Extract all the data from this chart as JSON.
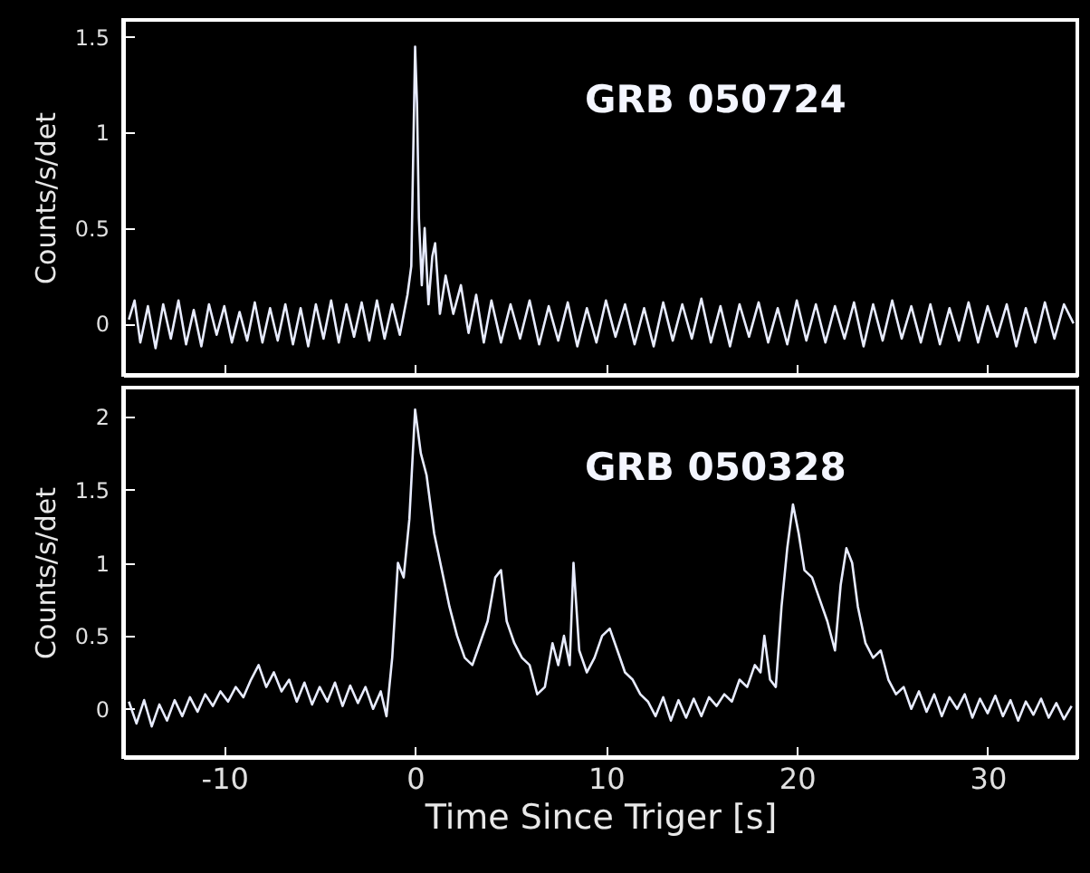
{
  "chart_data": [
    {
      "type": "line",
      "ylabel": "Counts/s/det",
      "annotations": [
        "GRB 050724"
      ],
      "xlim": [
        -15.3,
        34.7
      ],
      "xticks": [
        -10,
        0,
        10,
        20,
        30
      ],
      "ylim": [
        -0.27,
        1.59
      ],
      "yticks": [
        0,
        0.5,
        1,
        1.5
      ],
      "tick_labels": "y",
      "series": [
        {
          "color": "#e8ecff",
          "x": [
            -15,
            -14.7,
            -14.4,
            -14,
            -13.6,
            -13.2,
            -12.8,
            -12.4,
            -12,
            -11.6,
            -11.2,
            -10.8,
            -10.4,
            -10,
            -9.6,
            -9.2,
            -8.8,
            -8.4,
            -8,
            -7.6,
            -7.2,
            -6.8,
            -6.4,
            -6,
            -5.6,
            -5.2,
            -4.8,
            -4.4,
            -4,
            -3.6,
            -3.2,
            -2.8,
            -2.4,
            -2,
            -1.6,
            -1.2,
            -0.8,
            -0.4,
            -0.2,
            0,
            0.1,
            0.2,
            0.35,
            0.5,
            0.7,
            0.9,
            1.05,
            1.3,
            1.6,
            2,
            2.4,
            2.8,
            3.2,
            3.6,
            4,
            4.5,
            5,
            5.5,
            6,
            6.5,
            7,
            7.5,
            8,
            8.5,
            9,
            9.5,
            10,
            10.5,
            11,
            11.5,
            12,
            12.5,
            13,
            13.5,
            14,
            14.5,
            15,
            15.5,
            16,
            16.5,
            17,
            17.5,
            18,
            18.5,
            19,
            19.5,
            20,
            20.5,
            21,
            21.5,
            22,
            22.5,
            23,
            23.5,
            24,
            24.5,
            25,
            25.5,
            26,
            26.5,
            27,
            27.5,
            28,
            28.5,
            29,
            29.5,
            30,
            30.5,
            31,
            31.5,
            32,
            32.5,
            33,
            33.5,
            34,
            34.5
          ],
          "values": [
            0.02,
            0.12,
            -0.1,
            0.09,
            -0.13,
            0.1,
            -0.08,
            0.12,
            -0.11,
            0.07,
            -0.12,
            0.1,
            -0.06,
            0.09,
            -0.1,
            0.06,
            -0.09,
            0.11,
            -0.1,
            0.08,
            -0.09,
            0.1,
            -0.11,
            0.08,
            -0.12,
            0.1,
            -0.08,
            0.12,
            -0.1,
            0.1,
            -0.07,
            0.11,
            -0.09,
            0.12,
            -0.08,
            0.1,
            -0.06,
            0.15,
            0.3,
            1.45,
            1.15,
            0.55,
            0.2,
            0.5,
            0.1,
            0.35,
            0.42,
            0.05,
            0.25,
            0.05,
            0.2,
            -0.05,
            0.15,
            -0.1,
            0.12,
            -0.1,
            0.1,
            -0.08,
            0.12,
            -0.11,
            0.09,
            -0.09,
            0.11,
            -0.12,
            0.08,
            -0.1,
            0.12,
            -0.07,
            0.1,
            -0.11,
            0.08,
            -0.12,
            0.11,
            -0.09,
            0.1,
            -0.08,
            0.13,
            -0.1,
            0.09,
            -0.12,
            0.1,
            -0.07,
            0.11,
            -0.1,
            0.08,
            -0.11,
            0.12,
            -0.09,
            0.1,
            -0.1,
            0.09,
            -0.08,
            0.11,
            -0.12,
            0.1,
            -0.09,
            0.12,
            -0.08,
            0.09,
            -0.1,
            0.1,
            -0.11,
            0.08,
            -0.09,
            0.11,
            -0.1,
            0.09,
            -0.07,
            0.1,
            -0.12,
            0.08,
            -0.1,
            0.11,
            -0.08,
            0.1,
            0.0
          ]
        }
      ]
    },
    {
      "type": "line",
      "xlabel": "Time Since Triger [s]",
      "ylabel": "Counts/s/det",
      "annotations": [
        "GRB 050328"
      ],
      "xlim": [
        -15.3,
        34.7
      ],
      "xticks": [
        -10,
        0,
        10,
        20,
        30
      ],
      "ylim": [
        -0.33,
        2.2
      ],
      "yticks": [
        0,
        0.5,
        1,
        1.5,
        2
      ],
      "series": [
        {
          "color": "#e8ecff",
          "x": [
            -15,
            -14.6,
            -14.2,
            -13.8,
            -13.4,
            -13,
            -12.6,
            -12.2,
            -11.8,
            -11.4,
            -11,
            -10.6,
            -10.2,
            -9.8,
            -9.4,
            -9,
            -8.6,
            -8.2,
            -7.8,
            -7.4,
            -7,
            -6.6,
            -6.2,
            -5.8,
            -5.4,
            -5,
            -4.6,
            -4.2,
            -3.8,
            -3.4,
            -3,
            -2.6,
            -2.2,
            -1.8,
            -1.5,
            -1.2,
            -0.9,
            -0.6,
            -0.3,
            0,
            0.3,
            0.6,
            1,
            1.4,
            1.8,
            2.2,
            2.6,
            3,
            3.4,
            3.8,
            4.2,
            4.5,
            4.8,
            5.2,
            5.6,
            6,
            6.4,
            6.8,
            7.2,
            7.5,
            7.8,
            8.1,
            8.3,
            8.6,
            9,
            9.4,
            9.8,
            10.2,
            10.6,
            11,
            11.4,
            11.8,
            12.2,
            12.6,
            13,
            13.4,
            13.8,
            14.2,
            14.6,
            15,
            15.4,
            15.8,
            16.2,
            16.6,
            17,
            17.4,
            17.8,
            18.1,
            18.3,
            18.6,
            18.9,
            19.2,
            19.5,
            19.8,
            20.1,
            20.4,
            20.8,
            21.2,
            21.6,
            22,
            22.3,
            22.6,
            22.9,
            23.2,
            23.6,
            24,
            24.4,
            24.8,
            25.2,
            25.6,
            26,
            26.4,
            26.8,
            27.2,
            27.6,
            28,
            28.4,
            28.8,
            29.2,
            29.6,
            30,
            30.4,
            30.8,
            31.2,
            31.6,
            32,
            32.4,
            32.8,
            33.2,
            33.6,
            34,
            34.4
          ],
          "values": [
            0.05,
            -0.1,
            0.06,
            -0.12,
            0.03,
            -0.08,
            0.06,
            -0.05,
            0.08,
            -0.02,
            0.1,
            0.02,
            0.12,
            0.05,
            0.15,
            0.08,
            0.2,
            0.3,
            0.15,
            0.25,
            0.12,
            0.2,
            0.05,
            0.18,
            0.03,
            0.15,
            0.05,
            0.18,
            0.02,
            0.16,
            0.04,
            0.15,
            0.0,
            0.12,
            -0.05,
            0.35,
            1.0,
            0.9,
            1.3,
            2.05,
            1.75,
            1.6,
            1.2,
            0.95,
            0.7,
            0.5,
            0.35,
            0.3,
            0.45,
            0.6,
            0.9,
            0.95,
            0.6,
            0.45,
            0.35,
            0.3,
            0.1,
            0.15,
            0.45,
            0.3,
            0.5,
            0.3,
            1.0,
            0.4,
            0.25,
            0.35,
            0.5,
            0.55,
            0.4,
            0.25,
            0.2,
            0.1,
            0.05,
            -0.05,
            0.08,
            -0.08,
            0.06,
            -0.06,
            0.07,
            -0.05,
            0.08,
            0.02,
            0.1,
            0.05,
            0.2,
            0.15,
            0.3,
            0.25,
            0.5,
            0.2,
            0.15,
            0.7,
            1.1,
            1.4,
            1.2,
            0.95,
            0.9,
            0.75,
            0.6,
            0.4,
            0.85,
            1.1,
            1.0,
            0.7,
            0.45,
            0.35,
            0.4,
            0.2,
            0.1,
            0.15,
            0.0,
            0.12,
            -0.02,
            0.1,
            -0.05,
            0.08,
            0.0,
            0.1,
            -0.06,
            0.07,
            -0.03,
            0.09,
            -0.05,
            0.06,
            -0.08,
            0.05,
            -0.04,
            0.07,
            -0.06,
            0.04,
            -0.07,
            0.02
          ]
        }
      ]
    }
  ]
}
